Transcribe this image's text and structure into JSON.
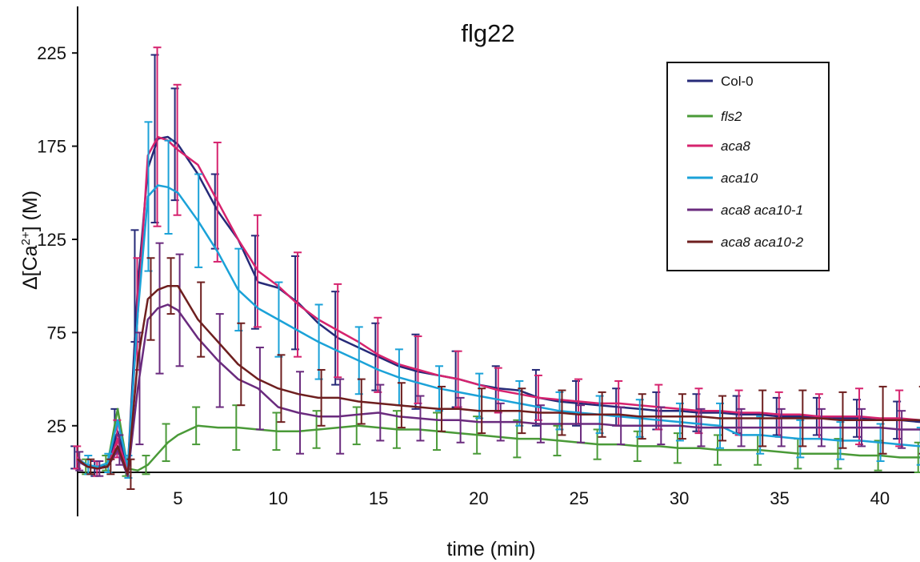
{
  "chart_data": {
    "type": "line",
    "title": "flg22",
    "xlabel": "time (min)",
    "ylabel_prefix": "Δ[Ca",
    "ylabel_sup": "2+",
    "ylabel_suffix": "] (M)",
    "xlim": [
      0,
      42
    ],
    "ylim": [
      0,
      250
    ],
    "xticks": [
      5,
      10,
      15,
      20,
      25,
      30,
      35,
      40
    ],
    "yticks": [
      25,
      75,
      125,
      175,
      225
    ],
    "legend_position": "top-right",
    "grid": false,
    "series": [
      {
        "name": "Col-0",
        "italic": false,
        "color": "#262a78",
        "x": [
          0,
          0.5,
          1,
          1.5,
          2,
          2.5,
          3,
          3.5,
          4,
          4.5,
          5,
          6,
          7,
          8,
          9,
          10,
          11,
          12,
          13,
          14,
          15,
          16,
          17,
          18,
          19,
          20,
          21,
          22,
          23,
          24,
          25,
          26,
          27,
          28,
          29,
          30,
          31,
          32,
          33,
          34,
          35,
          36,
          37,
          38,
          39,
          40,
          41,
          42
        ],
        "y": [
          8,
          3,
          2,
          4,
          22,
          2,
          100,
          163,
          179,
          180,
          176,
          160,
          140,
          125,
          102,
          99,
          91,
          80,
          72,
          67,
          62,
          57,
          54,
          52,
          50,
          47,
          45,
          44,
          40,
          38,
          37,
          36,
          35,
          34,
          33,
          33,
          32,
          32,
          31,
          31,
          30,
          30,
          30,
          29,
          29,
          28,
          28,
          27
        ],
        "err": [
          6,
          5,
          4,
          5,
          12,
          6,
          30,
          35,
          45,
          35,
          30,
          22,
          20,
          30,
          25,
          20,
          25,
          25,
          25,
          20,
          18,
          20,
          20,
          15,
          15,
          12,
          12,
          15,
          15,
          15,
          12,
          10,
          10,
          10,
          10,
          10,
          10,
          10,
          10,
          10,
          10,
          10,
          10,
          10,
          10,
          10,
          10,
          10
        ]
      },
      {
        "name": "fls2",
        "italic": true,
        "color": "#4a9a38",
        "x": [
          0,
          0.5,
          1,
          1.5,
          2,
          2.5,
          3,
          3.5,
          4,
          4.5,
          5,
          6,
          7,
          8,
          9,
          10,
          11,
          12,
          13,
          14,
          15,
          16,
          17,
          18,
          19,
          20,
          21,
          22,
          23,
          24,
          25,
          26,
          27,
          28,
          29,
          30,
          31,
          32,
          33,
          34,
          35,
          36,
          37,
          38,
          39,
          40,
          41,
          42
        ],
        "y": [
          7,
          3,
          3,
          5,
          34,
          2,
          1,
          4,
          10,
          16,
          20,
          25,
          24,
          24,
          23,
          22,
          22,
          23,
          24,
          25,
          24,
          23,
          23,
          22,
          21,
          20,
          19,
          18,
          18,
          17,
          16,
          15,
          15,
          14,
          14,
          13,
          13,
          12,
          12,
          12,
          11,
          10,
          10,
          10,
          9,
          9,
          8,
          8
        ],
        "err": [
          5,
          4,
          4,
          4,
          8,
          4,
          5,
          5,
          8,
          10,
          10,
          10,
          10,
          12,
          10,
          10,
          12,
          10,
          10,
          10,
          10,
          10,
          10,
          10,
          10,
          10,
          10,
          10,
          8,
          8,
          8,
          8,
          8,
          8,
          8,
          8,
          8,
          8,
          8,
          8,
          8,
          8,
          8,
          8,
          8,
          8,
          8,
          8
        ]
      },
      {
        "name": "aca8",
        "italic": true,
        "color": "#d6236e",
        "x": [
          0,
          0.5,
          1,
          1.5,
          2,
          2.5,
          3,
          3.5,
          4,
          4.5,
          5,
          6,
          7,
          8,
          9,
          10,
          11,
          12,
          13,
          14,
          15,
          16,
          17,
          18,
          19,
          20,
          21,
          22,
          23,
          24,
          25,
          26,
          27,
          28,
          29,
          30,
          31,
          32,
          33,
          34,
          35,
          36,
          37,
          38,
          39,
          40,
          41,
          42
        ],
        "y": [
          8,
          3,
          2,
          3,
          18,
          0,
          85,
          170,
          180,
          178,
          173,
          165,
          145,
          125,
          108,
          100,
          90,
          82,
          76,
          70,
          63,
          58,
          55,
          52,
          50,
          47,
          44,
          42,
          40,
          39,
          38,
          37,
          37,
          36,
          35,
          34,
          33,
          33,
          32,
          32,
          31,
          31,
          30,
          30,
          30,
          29,
          29,
          28
        ],
        "err": [
          6,
          5,
          4,
          5,
          10,
          6,
          30,
          40,
          48,
          35,
          35,
          25,
          32,
          28,
          30,
          30,
          28,
          30,
          25,
          25,
          20,
          20,
          18,
          15,
          15,
          15,
          12,
          12,
          12,
          12,
          12,
          12,
          12,
          12,
          12,
          12,
          12,
          12,
          12,
          12,
          12,
          12,
          12,
          12,
          15,
          15,
          15,
          15
        ]
      },
      {
        "name": "aca10",
        "italic": true,
        "color": "#1ba2d8",
        "x": [
          0,
          0.5,
          1,
          1.5,
          2,
          2.5,
          3,
          3.5,
          4,
          4.5,
          5,
          6,
          7,
          8,
          9,
          10,
          11,
          12,
          13,
          14,
          15,
          16,
          17,
          18,
          19,
          20,
          21,
          22,
          23,
          24,
          25,
          26,
          27,
          28,
          29,
          30,
          31,
          32,
          33,
          34,
          35,
          36,
          37,
          38,
          39,
          40,
          41,
          42
        ],
        "y": [
          7,
          4,
          3,
          5,
          28,
          3,
          85,
          148,
          154,
          153,
          150,
          135,
          118,
          98,
          88,
          82,
          76,
          70,
          65,
          60,
          55,
          51,
          48,
          45,
          43,
          41,
          39,
          37,
          35,
          33,
          32,
          31,
          30,
          29,
          28,
          27,
          26,
          25,
          20,
          20,
          19,
          18,
          18,
          17,
          17,
          16,
          15,
          14
        ],
        "err": [
          6,
          5,
          4,
          5,
          10,
          6,
          30,
          40,
          30,
          25,
          30,
          25,
          30,
          22,
          22,
          20,
          22,
          20,
          20,
          18,
          15,
          15,
          15,
          12,
          12,
          12,
          12,
          12,
          10,
          10,
          10,
          10,
          10,
          10,
          10,
          10,
          10,
          12,
          12,
          10,
          10,
          10,
          10,
          10,
          10,
          10,
          10,
          10
        ]
      },
      {
        "name": "aca8 aca10-1",
        "italic": true,
        "color": "#6a2b7e",
        "x": [
          0,
          0.5,
          1,
          1.5,
          2,
          2.5,
          3,
          3.5,
          4,
          4.5,
          5,
          6,
          7,
          8,
          9,
          10,
          11,
          12,
          13,
          14,
          15,
          16,
          17,
          18,
          19,
          20,
          21,
          22,
          23,
          24,
          25,
          26,
          27,
          28,
          29,
          30,
          31,
          32,
          33,
          34,
          35,
          36,
          37,
          38,
          39,
          40,
          41,
          42
        ],
        "y": [
          6,
          3,
          2,
          3,
          12,
          -2,
          45,
          82,
          88,
          90,
          87,
          72,
          60,
          50,
          45,
          35,
          32,
          30,
          30,
          31,
          32,
          30,
          29,
          28,
          28,
          27,
          27,
          27,
          26,
          26,
          26,
          26,
          25,
          25,
          25,
          25,
          24,
          24,
          24,
          24,
          24,
          24,
          24,
          24,
          24,
          24,
          23,
          23
        ],
        "err": [
          5,
          4,
          4,
          4,
          8,
          8,
          30,
          30,
          35,
          30,
          30,
          25,
          25,
          22,
          22,
          20,
          22,
          25,
          20,
          20,
          15,
          15,
          12,
          12,
          12,
          12,
          10,
          10,
          10,
          10,
          10,
          10,
          10,
          10,
          10,
          10,
          10,
          10,
          10,
          10,
          10,
          10,
          10,
          10,
          10,
          10,
          10,
          10
        ]
      },
      {
        "name": "aca8 aca10-2",
        "italic": true,
        "color": "#6e1f1f",
        "x": [
          0,
          0.5,
          1,
          1.5,
          2,
          2.5,
          3,
          3.5,
          4,
          4.5,
          5,
          6,
          7,
          8,
          9,
          10,
          11,
          12,
          13,
          14,
          15,
          16,
          17,
          18,
          19,
          20,
          21,
          22,
          23,
          24,
          25,
          26,
          27,
          28,
          29,
          30,
          31,
          32,
          33,
          34,
          35,
          36,
          37,
          38,
          39,
          40,
          41,
          42
        ],
        "y": [
          7,
          3,
          2,
          3,
          14,
          -1,
          60,
          93,
          98,
          100,
          100,
          82,
          70,
          58,
          50,
          45,
          42,
          40,
          40,
          38,
          37,
          36,
          35,
          34,
          34,
          33,
          33,
          33,
          32,
          32,
          31,
          31,
          31,
          30,
          30,
          30,
          30,
          29,
          29,
          29,
          29,
          29,
          29,
          28,
          28,
          28,
          28,
          28
        ],
        "err": [
          5,
          4,
          4,
          4,
          8,
          8,
          28,
          22,
          18,
          15,
          18,
          20,
          18,
          22,
          20,
          18,
          18,
          15,
          15,
          12,
          12,
          12,
          12,
          12,
          12,
          12,
          12,
          12,
          12,
          12,
          12,
          12,
          12,
          12,
          12,
          12,
          12,
          12,
          15,
          15,
          15,
          15,
          15,
          15,
          18,
          18,
          18,
          18
        ]
      }
    ]
  }
}
